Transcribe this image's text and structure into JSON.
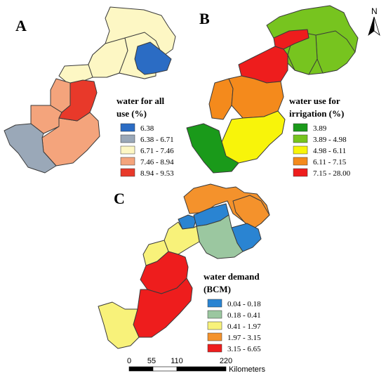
{
  "panels": {
    "a": {
      "letter": "A",
      "legend_title_1": "water for all",
      "legend_title_2": "use (%)",
      "legend": [
        {
          "label": "6.38",
          "color": "#2b6cc4"
        },
        {
          "label": "6.38 - 6.71",
          "color": "#9aa8b8"
        },
        {
          "label": "6.71 - 7.46",
          "color": "#fdf7c4"
        },
        {
          "label": "7.46 - 8.94",
          "color": "#f4a47c"
        },
        {
          "label": "8.94 - 9.53",
          "color": "#e8392a"
        }
      ]
    },
    "b": {
      "letter": "B",
      "legend_title_1": "water use for",
      "legend_title_2": "irrigation (%)",
      "legend": [
        {
          "label": "3.89",
          "color": "#1a9a1a"
        },
        {
          "label": "3.89 - 4.98",
          "color": "#77c41f"
        },
        {
          "label": "4.98 - 6.11",
          "color": "#f8f40a"
        },
        {
          "label": "6.11 - 7.15",
          "color": "#f48a1c"
        },
        {
          "label": "7.15 - 28.00",
          "color": "#ee1d1d"
        }
      ]
    },
    "c": {
      "letter": "C",
      "legend_title_1": "water demand",
      "legend_title_2": "(BCM)",
      "legend": [
        {
          "label": "0.04 - 0.18",
          "color": "#2a84d2"
        },
        {
          "label": "0.18 - 0.41",
          "color": "#9bc7a0"
        },
        {
          "label": "0.41 - 1.97",
          "color": "#f8f27a"
        },
        {
          "label": "1.97 - 3.15",
          "color": "#f4922c"
        },
        {
          "label": "3.15 - 6.65",
          "color": "#ee1d1d"
        }
      ]
    }
  },
  "scale_bar": {
    "ticks": [
      "0",
      "55",
      "110",
      "220"
    ],
    "unit": "Kilometers"
  },
  "north_arrow": {
    "label": "N",
    "icon": "north-arrow-icon"
  }
}
